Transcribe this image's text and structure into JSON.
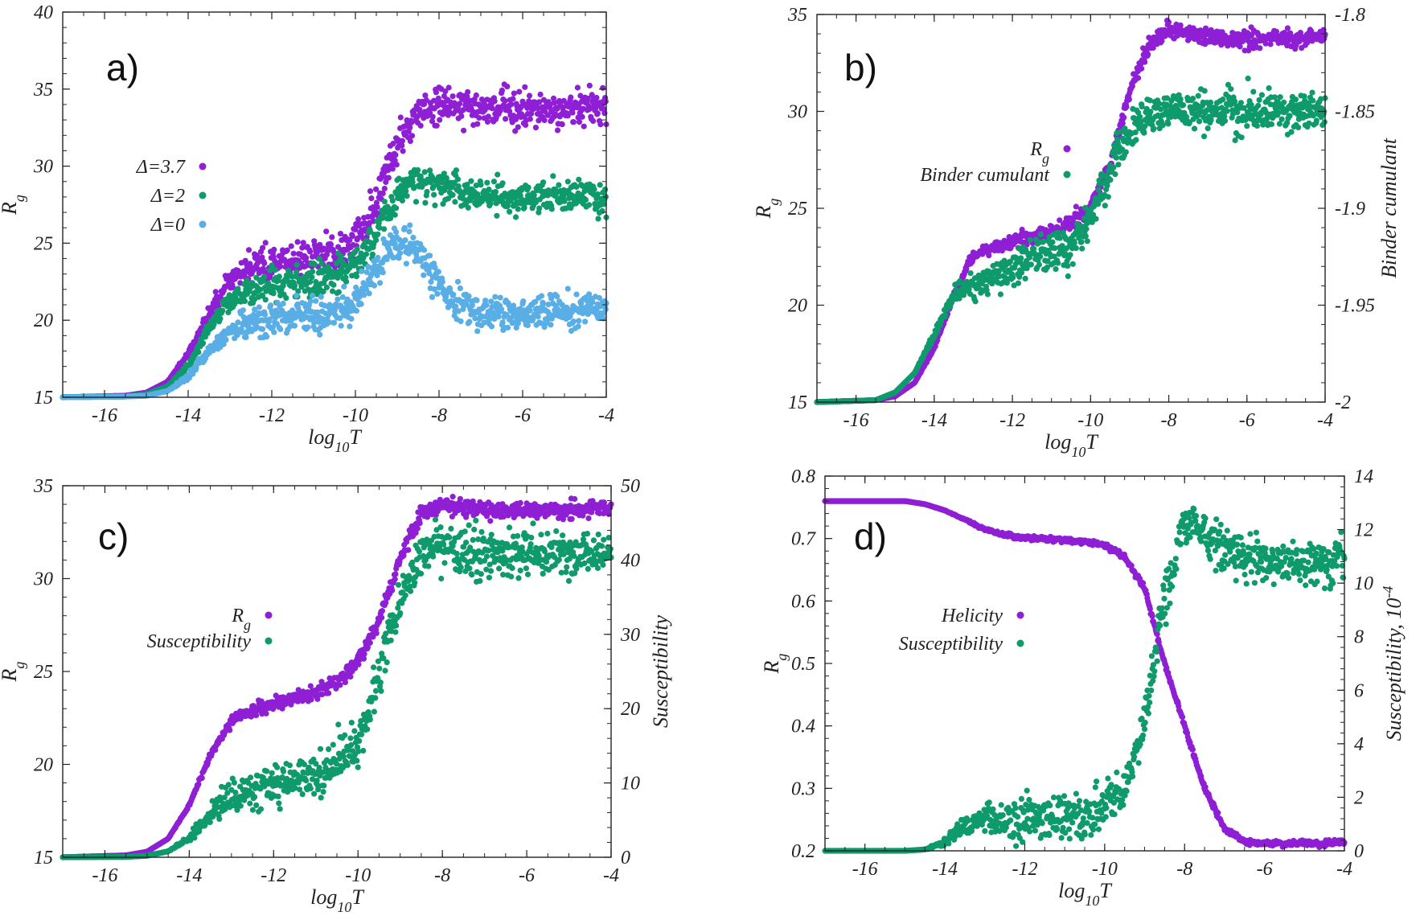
{
  "colors": {
    "purple": "#8f1fd4",
    "green": "#0f9a6c",
    "lightblue": "#5aaee6",
    "axis": "#222222"
  },
  "chart_data": [
    {
      "panel": "a)",
      "type": "scatter",
      "xlabel": "log10T",
      "ylabel": "Rg",
      "xlim": [
        -17,
        -4
      ],
      "ylim": [
        15,
        40
      ],
      "xticks": [
        "-16",
        "-14",
        "-12",
        "-10",
        "-8",
        "-6",
        "-4"
      ],
      "yticks": [
        "15",
        "20",
        "25",
        "30",
        "35",
        "40"
      ],
      "legend": [
        {
          "label": "Δ=3.7",
          "color": "purple"
        },
        {
          "label": "Δ=2",
          "color": "green"
        },
        {
          "label": "Δ=0",
          "color": "lightblue"
        }
      ],
      "series": [
        {
          "name": "Δ=3.7",
          "color": "purple",
          "axis": "left",
          "noise": 0.55,
          "x": [
            -17,
            -15.5,
            -15,
            -14.5,
            -14,
            -13.5,
            -13,
            -12.5,
            -12,
            -11.5,
            -11,
            -10.5,
            -10,
            -9.5,
            -9,
            -8.5,
            -8,
            -7,
            -6,
            -5,
            -4
          ],
          "y": [
            15,
            15.1,
            15.3,
            16,
            17.8,
            20.5,
            22.8,
            23.4,
            23.7,
            23.9,
            24,
            24.3,
            25,
            27.5,
            31.5,
            33.5,
            34,
            33.8,
            33.7,
            33.8,
            33.8
          ]
        },
        {
          "name": "Δ=2",
          "color": "green",
          "axis": "left",
          "noise": 0.55,
          "x": [
            -17,
            -15.5,
            -15,
            -14.5,
            -14,
            -13.5,
            -13,
            -12.5,
            -12,
            -11.5,
            -11,
            -10.5,
            -10,
            -9.5,
            -9,
            -8.5,
            -8,
            -7,
            -6,
            -5,
            -4
          ],
          "y": [
            15,
            15.05,
            15.2,
            15.7,
            17,
            19.5,
            21.3,
            21.8,
            22.2,
            22.5,
            22.7,
            23,
            23.7,
            25.8,
            28.3,
            29.2,
            29,
            28.1,
            28,
            28.1,
            28.1
          ]
        },
        {
          "name": "Δ=0",
          "color": "lightblue",
          "axis": "left",
          "noise": 0.55,
          "x": [
            -17,
            -15.5,
            -15,
            -14.5,
            -14,
            -13.5,
            -13,
            -12.5,
            -12,
            -11.5,
            -11,
            -10.5,
            -10,
            -9.5,
            -9,
            -8.5,
            -8,
            -7.5,
            -7,
            -6,
            -5,
            -4
          ],
          "y": [
            15,
            15.05,
            15.1,
            15.4,
            16.3,
            18.1,
            19.3,
            19.8,
            20.1,
            20.2,
            20.3,
            20.5,
            21.3,
            23.3,
            25,
            24.5,
            22.3,
            21.1,
            20.5,
            20.4,
            20.6,
            20.7
          ]
        }
      ]
    },
    {
      "panel": "b)",
      "type": "scatter",
      "xlabel": "log10T",
      "ylabel": "Rg",
      "ylabel2": "Binder cumulant",
      "xlim": [
        -17,
        -4
      ],
      "ylim": [
        15,
        35
      ],
      "ylim2": [
        -2,
        -1.8
      ],
      "xticks": [
        "-16",
        "-14",
        "-12",
        "-10",
        "-8",
        "-6",
        "-4"
      ],
      "yticks": [
        "15",
        "20",
        "25",
        "30",
        "35"
      ],
      "yticks2": [
        "-2",
        "-1.95",
        "-1.9",
        "-1.85",
        "-1.8"
      ],
      "legend": [
        {
          "label": "Rg",
          "color": "purple"
        },
        {
          "label": "Binder cumulant",
          "color": "green"
        }
      ],
      "series": [
        {
          "name": "Rg",
          "color": "purple",
          "axis": "left",
          "noise": 0.2,
          "x": [
            -17,
            -15.5,
            -15,
            -14.5,
            -14,
            -13.5,
            -13,
            -12.5,
            -12,
            -11.5,
            -11,
            -10.5,
            -10,
            -9.5,
            -9,
            -8.5,
            -8,
            -7,
            -6,
            -5,
            -4
          ],
          "y": [
            15,
            15.1,
            15.3,
            16,
            17.8,
            20.5,
            22.6,
            23,
            23.3,
            23.5,
            23.8,
            24.2,
            25,
            27.3,
            31,
            33.5,
            34.2,
            33.8,
            33.7,
            33.8,
            33.8
          ]
        },
        {
          "name": "Binder cumulant",
          "color": "green",
          "axis": "right",
          "noise": 0.005,
          "x": [
            -17,
            -15.5,
            -15,
            -14.5,
            -14,
            -13.5,
            -13,
            -12.5,
            -12,
            -11.5,
            -11,
            -10.5,
            -10,
            -9.5,
            -9,
            -8.5,
            -8,
            -7,
            -6,
            -5,
            -4
          ],
          "y": [
            -2,
            -1.999,
            -1.995,
            -1.985,
            -1.965,
            -1.945,
            -1.94,
            -1.935,
            -1.93,
            -1.925,
            -1.922,
            -1.92,
            -1.905,
            -1.88,
            -1.86,
            -1.852,
            -1.85,
            -1.85,
            -1.85,
            -1.85,
            -1.85
          ]
        }
      ]
    },
    {
      "panel": "c)",
      "type": "scatter",
      "xlabel": "log10T",
      "ylabel": "Rg",
      "ylabel2": "Susceptibility",
      "xlim": [
        -17,
        -4
      ],
      "ylim": [
        15,
        35
      ],
      "ylim2": [
        0,
        50
      ],
      "xticks": [
        "-16",
        "-14",
        "-12",
        "-10",
        "-8",
        "-6",
        "-4"
      ],
      "yticks": [
        "15",
        "20",
        "25",
        "30",
        "35"
      ],
      "yticks2": [
        "0",
        "10",
        "20",
        "30",
        "40",
        "50"
      ],
      "legend": [
        {
          "label": "Rg",
          "color": "purple"
        },
        {
          "label": "Susceptibility",
          "color": "green"
        }
      ],
      "series": [
        {
          "name": "Rg",
          "color": "purple",
          "axis": "left",
          "noise": 0.2,
          "x": [
            -17,
            -15.5,
            -15,
            -14.5,
            -14,
            -13.5,
            -13,
            -12.5,
            -12,
            -11.5,
            -11,
            -10.5,
            -10,
            -9.5,
            -9,
            -8.5,
            -8,
            -7,
            -6,
            -5,
            -4
          ],
          "y": [
            15,
            15.1,
            15.3,
            16,
            17.8,
            20.5,
            22.3,
            22.9,
            23.3,
            23.6,
            23.9,
            24.4,
            25.5,
            27.8,
            31,
            33.5,
            34,
            33.7,
            33.7,
            33.7,
            33.8
          ]
        },
        {
          "name": "Susceptibility",
          "color": "green",
          "axis": "right",
          "noise": 1.5,
          "x": [
            -17,
            -15.5,
            -15,
            -14.5,
            -14,
            -13.5,
            -13,
            -12.5,
            -12,
            -11.5,
            -11,
            -10.5,
            -10,
            -9.5,
            -9,
            -8.5,
            -8,
            -7,
            -6,
            -5,
            -4
          ],
          "y": [
            0,
            0.05,
            0.2,
            0.8,
            2.5,
            5.5,
            8,
            9,
            10,
            10.7,
            11.3,
            12.5,
            15,
            25,
            35,
            41,
            42,
            41,
            41,
            41,
            41
          ]
        }
      ]
    },
    {
      "panel": "d)",
      "type": "scatter",
      "xlabel": "log10T",
      "ylabel": "Rg",
      "ylabel2": "Susceptibility, 10^-4",
      "xlim": [
        -17,
        -4
      ],
      "ylim": [
        0.2,
        0.8
      ],
      "ylim2": [
        0,
        14
      ],
      "xticks": [
        "-16",
        "-14",
        "-12",
        "-10",
        "-8",
        "-6",
        "-4"
      ],
      "yticks": [
        "0.2",
        "0.3",
        "0.4",
        "0.5",
        "0.6",
        "0.7",
        "0.8"
      ],
      "yticks2": [
        "0",
        "2",
        "4",
        "6",
        "8",
        "10",
        "12",
        "14"
      ],
      "legend": [
        {
          "label": "Helicity",
          "color": "purple"
        },
        {
          "label": "Susceptibility",
          "color": "green"
        }
      ],
      "series": [
        {
          "name": "Helicity",
          "color": "purple",
          "axis": "left",
          "noise": 0.002,
          "x": [
            -17,
            -15,
            -14.5,
            -14,
            -13.5,
            -13,
            -12.5,
            -12,
            -11,
            -10.5,
            -10,
            -9.5,
            -9,
            -8.5,
            -8,
            -7.5,
            -7,
            -6.5,
            -6,
            -5,
            -4
          ],
          "y": [
            0.76,
            0.76,
            0.755,
            0.745,
            0.73,
            0.715,
            0.705,
            0.7,
            0.698,
            0.695,
            0.69,
            0.67,
            0.62,
            0.5,
            0.4,
            0.3,
            0.235,
            0.215,
            0.212,
            0.212,
            0.212
          ]
        },
        {
          "name": "Susceptibility",
          "color": "green",
          "axis": "right",
          "noise": 0.45,
          "x": [
            -17,
            -15,
            -14.5,
            -14,
            -13.5,
            -13,
            -12.5,
            -12,
            -11,
            -10.5,
            -10,
            -9.5,
            -9,
            -8.5,
            -8,
            -7.5,
            -7,
            -6,
            -5,
            -4
          ],
          "y": [
            0,
            0,
            0.05,
            0.3,
            0.9,
            1.3,
            1.1,
            1.05,
            1.2,
            1.35,
            1.6,
            2.3,
            5,
            9.5,
            12.2,
            11.8,
            11.3,
            10.8,
            10.8,
            10.8
          ]
        }
      ]
    }
  ]
}
